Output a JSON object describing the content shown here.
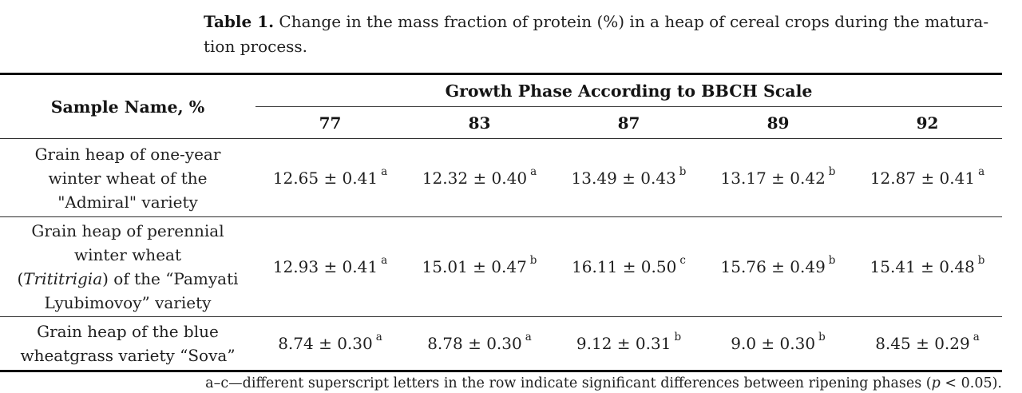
{
  "caption": {
    "label": "Table 1.",
    "line1_rest": " Change in the mass fraction of protein (%) in a heap of cereal crops during the matura-",
    "line2": "tion process."
  },
  "table": {
    "header": {
      "sample_col": "Sample Name, %",
      "group": "Growth Phase According to BBCH Scale",
      "phases": [
        "77",
        "83",
        "87",
        "89",
        "92"
      ]
    },
    "rows": [
      {
        "name_lines": [
          "Grain heap of one-year",
          "winter wheat of the",
          "\"Admiral\" variety"
        ],
        "cells": [
          {
            "value": "12.65 ± 0.41",
            "sup": "a"
          },
          {
            "value": "12.32 ± 0.40",
            "sup": "a"
          },
          {
            "value": "13.49 ± 0.43",
            "sup": "b"
          },
          {
            "value": "13.17 ± 0.42",
            "sup": "b"
          },
          {
            "value": "12.87 ± 0.41",
            "sup": "a"
          }
        ]
      },
      {
        "name_line1": "Grain heap of perennial",
        "name_line2": "winter wheat",
        "name_line3_pre": "(",
        "name_line3_italic": "Trititrigia",
        "name_line3_post": ") of the “Pamyati",
        "name_line4": "Lyubimovoy” variety",
        "cells": [
          {
            "value": "12.93 ± 0.41",
            "sup": "a"
          },
          {
            "value": "15.01 ± 0.47",
            "sup": "b"
          },
          {
            "value": "16.11 ± 0.50",
            "sup": "c"
          },
          {
            "value": "15.76 ± 0.49",
            "sup": "b"
          },
          {
            "value": "15.41 ± 0.48",
            "sup": "b"
          }
        ]
      },
      {
        "name_lines": [
          "Grain heap of the blue",
          "wheatgrass variety “Sova”"
        ],
        "cells": [
          {
            "value": "8.74 ± 0.30",
            "sup": "a"
          },
          {
            "value": "8.78 ± 0.30",
            "sup": "a"
          },
          {
            "value": "9.12 ± 0.31",
            "sup": "b"
          },
          {
            "value": "9.0 ± 0.30",
            "sup": "b"
          },
          {
            "value": "8.45 ± 0.29",
            "sup": "a"
          }
        ]
      }
    ]
  },
  "footnote": {
    "prefix": "a–c—different superscript letters in the row indicate significant differences between ripening phases (",
    "p": "p",
    "suffix": " < 0.05)."
  }
}
